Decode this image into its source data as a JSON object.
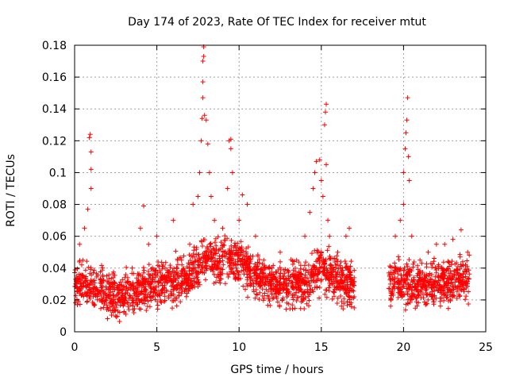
{
  "chart_data": {
    "type": "scatter",
    "title": "Day 174 of 2023, Rate Of TEC Index for receiver mtut",
    "xlabel": "GPS time / hours",
    "ylabel": "ROTI / TECUs",
    "xlim": [
      0,
      25
    ],
    "ylim": [
      0,
      0.18
    ],
    "x_ticks": [
      "0",
      "5",
      "10",
      "15",
      "20",
      "25"
    ],
    "y_ticks": [
      "0",
      "0.02",
      "0.04",
      "0.06",
      "0.08",
      "0.1",
      "0.12",
      "0.14",
      "0.16",
      "0.18"
    ],
    "grid": true,
    "marker": "+",
    "color": "#ff0000",
    "data_gap_hours": [
      17.0,
      19.1
    ],
    "series": [
      {
        "points": [
          [
            0.1,
            0.03
          ],
          [
            0.3,
            0.055
          ],
          [
            0.5,
            0.045
          ],
          [
            0.7,
            0.028
          ],
          [
            0.9,
            0.122
          ],
          [
            0.95,
            0.124
          ],
          [
            1.0,
            0.113
          ],
          [
            1.0,
            0.102
          ],
          [
            1.0,
            0.09
          ],
          [
            0.8,
            0.077
          ],
          [
            0.6,
            0.065
          ],
          [
            1.5,
            0.02
          ],
          [
            2.0,
            0.015
          ],
          [
            2.5,
            0.01
          ],
          [
            3.0,
            0.012
          ],
          [
            3.5,
            0.04
          ],
          [
            4.0,
            0.065
          ],
          [
            4.2,
            0.079
          ],
          [
            4.5,
            0.055
          ],
          [
            5.0,
            0.06
          ],
          [
            5.5,
            0.04
          ],
          [
            6.0,
            0.07
          ],
          [
            6.5,
            0.045
          ],
          [
            7.0,
            0.055
          ],
          [
            7.2,
            0.08
          ],
          [
            7.5,
            0.085
          ],
          [
            7.6,
            0.1
          ],
          [
            7.7,
            0.12
          ],
          [
            7.75,
            0.134
          ],
          [
            7.8,
            0.147
          ],
          [
            7.8,
            0.157
          ],
          [
            7.8,
            0.17
          ],
          [
            7.85,
            0.173
          ],
          [
            7.85,
            0.179
          ],
          [
            7.9,
            0.136
          ],
          [
            8.0,
            0.133
          ],
          [
            8.1,
            0.118
          ],
          [
            8.2,
            0.1
          ],
          [
            8.3,
            0.085
          ],
          [
            8.5,
            0.07
          ],
          [
            9.0,
            0.065
          ],
          [
            9.3,
            0.09
          ],
          [
            9.4,
            0.12
          ],
          [
            9.5,
            0.121
          ],
          [
            9.5,
            0.115
          ],
          [
            9.6,
            0.1
          ],
          [
            10.0,
            0.07
          ],
          [
            10.2,
            0.086
          ],
          [
            10.5,
            0.08
          ],
          [
            11.0,
            0.06
          ],
          [
            11.5,
            0.045
          ],
          [
            12.0,
            0.04
          ],
          [
            12.5,
            0.05
          ],
          [
            13.0,
            0.035
          ],
          [
            13.5,
            0.045
          ],
          [
            14.0,
            0.06
          ],
          [
            14.3,
            0.075
          ],
          [
            14.5,
            0.09
          ],
          [
            14.6,
            0.1
          ],
          [
            14.7,
            0.107
          ],
          [
            14.9,
            0.108
          ],
          [
            15.0,
            0.095
          ],
          [
            15.1,
            0.085
          ],
          [
            15.2,
            0.13
          ],
          [
            15.25,
            0.138
          ],
          [
            15.3,
            0.143
          ],
          [
            15.3,
            0.105
          ],
          [
            15.4,
            0.07
          ],
          [
            15.5,
            0.06
          ],
          [
            16.0,
            0.05
          ],
          [
            16.5,
            0.06
          ],
          [
            16.7,
            0.065
          ],
          [
            17.0,
            0.015
          ],
          [
            19.2,
            0.03
          ],
          [
            19.5,
            0.06
          ],
          [
            19.8,
            0.07
          ],
          [
            20.0,
            0.08
          ],
          [
            20.0,
            0.1
          ],
          [
            20.1,
            0.115
          ],
          [
            20.15,
            0.125
          ],
          [
            20.2,
            0.133
          ],
          [
            20.25,
            0.147
          ],
          [
            20.3,
            0.11
          ],
          [
            20.35,
            0.095
          ],
          [
            20.5,
            0.06
          ],
          [
            21.0,
            0.045
          ],
          [
            21.5,
            0.05
          ],
          [
            22.0,
            0.055
          ],
          [
            22.5,
            0.055
          ],
          [
            23.0,
            0.058
          ],
          [
            23.5,
            0.064
          ],
          [
            23.9,
            0.05
          ]
        ],
        "dense_band": {
          "x_range": [
            0,
            24
          ],
          "gap": [
            17.0,
            19.1
          ],
          "baseline": [
            [
              0,
              0.03
            ],
            [
              1,
              0.03
            ],
            [
              2,
              0.025
            ],
            [
              3,
              0.022
            ],
            [
              4,
              0.028
            ],
            [
              5,
              0.03
            ],
            [
              6,
              0.032
            ],
            [
              7,
              0.035
            ],
            [
              8,
              0.045
            ],
            [
              9,
              0.045
            ],
            [
              10,
              0.045
            ],
            [
              11,
              0.035
            ],
            [
              12,
              0.03
            ],
            [
              13,
              0.028
            ],
            [
              14,
              0.03
            ],
            [
              15,
              0.04
            ],
            [
              16,
              0.032
            ],
            [
              17,
              0.03
            ],
            [
              19.1,
              0.03
            ],
            [
              20,
              0.03
            ],
            [
              21,
              0.03
            ],
            [
              22,
              0.03
            ],
            [
              23,
              0.033
            ],
            [
              24,
              0.033
            ]
          ],
          "spread": 0.02,
          "count": 2600
        }
      }
    ]
  }
}
